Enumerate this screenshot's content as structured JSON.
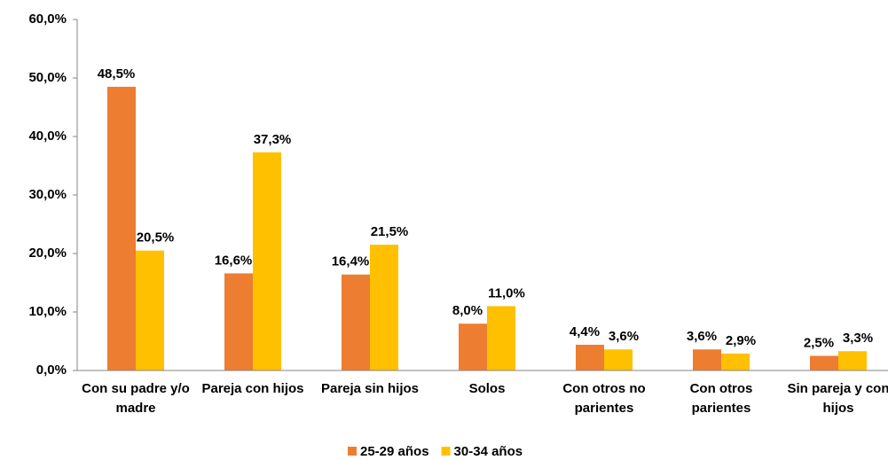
{
  "chart_data": {
    "type": "bar",
    "categories": [
      "Con su padre y/o madre",
      "Pareja con hijos",
      "Pareja sin hijos",
      "Solos",
      "Con otros no parientes",
      "Con otros parientes",
      "Sin pareja y con hijos"
    ],
    "series": [
      {
        "name": "25-29 años",
        "color": "#ED7D31",
        "values": [
          48.5,
          16.6,
          16.4,
          8.0,
          4.4,
          3.6,
          2.5
        ],
        "value_labels": [
          "48,5%",
          "16,6%",
          "16,4%",
          "8,0%",
          "4,4%",
          "3,6%",
          "2,5%"
        ]
      },
      {
        "name": "30-34 años",
        "color": "#FFC000",
        "values": [
          20.5,
          37.3,
          21.5,
          11.0,
          3.6,
          2.9,
          3.3
        ],
        "value_labels": [
          "20,5%",
          "37,3%",
          "21,5%",
          "11,0%",
          "3,6%",
          "2,9%",
          "3,3%"
        ]
      }
    ],
    "ylim": [
      0,
      60
    ],
    "yticks": [
      {
        "value": 0,
        "label": "0,0%"
      },
      {
        "value": 10,
        "label": "10,0%"
      },
      {
        "value": 20,
        "label": "20,0%"
      },
      {
        "value": 30,
        "label": "30,0%"
      },
      {
        "value": 40,
        "label": "40,0%"
      },
      {
        "value": 50,
        "label": "50,0%"
      },
      {
        "value": 60,
        "label": "60,0%"
      }
    ],
    "legend": "bottom"
  }
}
